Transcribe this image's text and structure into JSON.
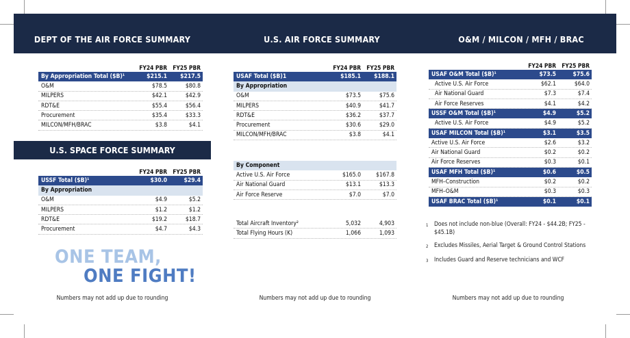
{
  "headers": {
    "dept": "DEPT OF THE AIR FORCE SUMMARY",
    "usaf": "U.S. AIR FORCE SUMMARY",
    "om": "O&M / MILCON / MFH / BRAC",
    "ussf": "U.S. SPACE FORCE SUMMARY"
  },
  "col_fy24": "FY24 PBR",
  "col_fy25": "FY25 PBR",
  "dept_rows": [
    {
      "label": "By Appropriation Total ($B)¹",
      "fy24": "$215.1",
      "fy25": "$217.5",
      "style": "tot"
    },
    {
      "label": "O&M",
      "fy24": "$78.5",
      "fy25": "$80.8",
      "style": ""
    },
    {
      "label": "MILPERS",
      "fy24": "$42.1",
      "fy25": "$42.9",
      "style": ""
    },
    {
      "label": "RDT&E",
      "fy24": "$55.4",
      "fy25": "$56.4",
      "style": ""
    },
    {
      "label": "Procurement",
      "fy24": "$35.4",
      "fy25": "$33.3",
      "style": ""
    },
    {
      "label": "MILCON/MFH/BRAC",
      "fy24": "$3.8",
      "fy25": "$4.1",
      "style": ""
    }
  ],
  "ussf_rows": [
    {
      "label": "USSF Total ($B)¹",
      "fy24": "$30.0",
      "fy25": "$29.4",
      "style": "tot"
    },
    {
      "label": "By Appropriation",
      "fy24": "",
      "fy25": "",
      "style": "sub"
    },
    {
      "label": "O&M",
      "fy24": "$4.9",
      "fy25": "$5.2",
      "style": ""
    },
    {
      "label": "MILPERS",
      "fy24": "$1.2",
      "fy25": "$1.2",
      "style": ""
    },
    {
      "label": "RDT&E",
      "fy24": "$19.2",
      "fy25": "$18.7",
      "style": ""
    },
    {
      "label": "Procurement",
      "fy24": "$4.7",
      "fy25": "$4.3",
      "style": ""
    }
  ],
  "usaf_rows1": [
    {
      "label": "USAF Total ($B)1",
      "fy24": "$185.1",
      "fy25": "$188.1",
      "style": "tot"
    },
    {
      "label": "By Appropriation",
      "fy24": "",
      "fy25": "",
      "style": "sub"
    },
    {
      "label": "O&M",
      "fy24": "$73.5",
      "fy25": "$75.6",
      "style": ""
    },
    {
      "label": "MILPERS",
      "fy24": "$40.9",
      "fy25": "$41.7",
      "style": ""
    },
    {
      "label": "RDT&E",
      "fy24": "$36.2",
      "fy25": "$37.7",
      "style": ""
    },
    {
      "label": "Procurement",
      "fy24": "$30.6",
      "fy25": "$29.0",
      "style": ""
    },
    {
      "label": "MILCON/MFH/BRAC",
      "fy24": "$3.8",
      "fy25": "$4.1",
      "style": ""
    }
  ],
  "usaf_rows2": [
    {
      "label": "By Component",
      "fy24": "",
      "fy25": "",
      "style": "sub"
    },
    {
      "label": "Active U.S. Air Force",
      "fy24": "$165.0",
      "fy25": "$167.8",
      "style": ""
    },
    {
      "label": "Air National Guard",
      "fy24": "$13.1",
      "fy25": "$13.3",
      "style": ""
    },
    {
      "label": "Air Force Reserve",
      "fy24": "$7.0",
      "fy25": "$7.0",
      "style": ""
    }
  ],
  "usaf_rows3": [
    {
      "label": "Total Aircraft Inventory²",
      "fy24": "5,032",
      "fy25": "4,903",
      "style": ""
    },
    {
      "label": "Total Flying Hours (K)",
      "fy24": "1,066",
      "fy25": "1,093",
      "style": ""
    }
  ],
  "om_rows": [
    {
      "label": "USAF O&M Total ($B)¹",
      "fy24": "$73.5",
      "fy25": "$75.6",
      "style": "tot"
    },
    {
      "label": "Active U.S. Air Force",
      "fy24": "$62.1",
      "fy25": "$64.0",
      "style": "ind"
    },
    {
      "label": "Air National Guard",
      "fy24": "$7.3",
      "fy25": "$7.4",
      "style": "ind"
    },
    {
      "label": "Air Force Reserves",
      "fy24": "$4.1",
      "fy25": "$4.2",
      "style": "ind"
    },
    {
      "label": "USSF O&M Total ($B)¹",
      "fy24": "$4.9",
      "fy25": "$5.2",
      "style": "tot"
    },
    {
      "label": "Active U.S. Air Force",
      "fy24": "$4.9",
      "fy25": "$5.2",
      "style": "ind"
    },
    {
      "label": "USAF MILCON Total ($B)¹",
      "fy24": "$3.1",
      "fy25": "$3.5",
      "style": "tot"
    },
    {
      "label": "Active U.S. Air Force",
      "fy24": "$2.6",
      "fy25": "$3.2",
      "style": ""
    },
    {
      "label": "Air National Guard",
      "fy24": "$0.2",
      "fy25": "$0.2",
      "style": ""
    },
    {
      "label": "Air Force Reserves",
      "fy24": "$0.3",
      "fy25": "$0.1",
      "style": ""
    },
    {
      "label": "USAF MFH Total ($B)¹",
      "fy24": "$0.6",
      "fy25": "$0.5",
      "style": "tot"
    },
    {
      "label": "MFH–Construction",
      "fy24": "$0.2",
      "fy25": "$0.2",
      "style": ""
    },
    {
      "label": "MFH–O&M",
      "fy24": "$0.3",
      "fy25": "$0.3",
      "style": ""
    },
    {
      "label": "USAF BRAC Total ($B)¹",
      "fy24": "$0.1",
      "fy25": "$0.1",
      "style": "tot"
    }
  ],
  "notes": [
    {
      "num": "1",
      "text": "Does not include non-blue (Overall: FY24 - $44.2B; FY25 - $45.1B)"
    },
    {
      "num": "2",
      "text": "Excludes Missiles, Aerial Target & Ground Control Stations"
    },
    {
      "num": "3",
      "text": "Includes Guard and Reserve technicians and WCF"
    }
  ],
  "slogan_line1": "ONE TEAM,",
  "slogan_line2": "ONE FIGHT!",
  "footnote": "Numbers may not add up due to rounding"
}
